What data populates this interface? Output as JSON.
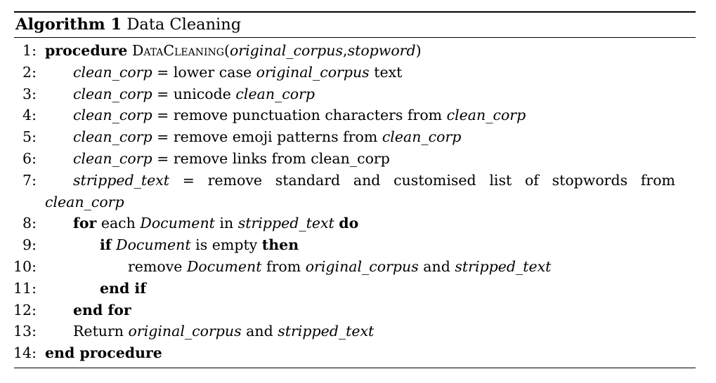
{
  "algorithm": {
    "title_label": "Algorithm 1",
    "title_name": "Data Cleaning",
    "lines": {
      "l1": {
        "num": "1:",
        "kw_procedure": "procedure",
        "proc_name": "DataCleaning",
        "open": "(",
        "arg1": "original_corpus",
        "comma": ",",
        "arg2": "stopword",
        "close": ")"
      },
      "l2": {
        "num": "2:",
        "var": "clean_corp",
        "eq": "=",
        "text1": "lower case",
        "var2": "original_corpus",
        "text2": "text"
      },
      "l3": {
        "num": "3:",
        "var": "clean_corp",
        "eq": "=",
        "text1": "unicode",
        "var2": "clean_corp"
      },
      "l4": {
        "num": "4:",
        "var": "clean_corp",
        "eq": "=",
        "text1": "remove punctuation characters from",
        "var2": "clean_corp"
      },
      "l5": {
        "num": "5:",
        "var": "clean_corp",
        "eq": "=",
        "text1": "remove emoji patterns from",
        "var2": "clean_corp"
      },
      "l6": {
        "num": "6:",
        "var": "clean_corp",
        "eq": "=",
        "text1": "remove links from clean_corp"
      },
      "l7": {
        "num": "7:",
        "words": [
          "stripped_text",
          "=",
          "remove",
          "standard",
          "and",
          "customised",
          "list",
          "of",
          "stopwords",
          "from"
        ],
        "cont": "clean_corp"
      },
      "l8": {
        "num": "8:",
        "kw_for": "for",
        "text1": "each",
        "var1": "Document",
        "text2": "in",
        "var2": "stripped_text",
        "kw_do": "do"
      },
      "l9": {
        "num": "9:",
        "kw_if": "if",
        "var1": "Document",
        "text1": "is empty",
        "kw_then": "then"
      },
      "l10": {
        "num": "10:",
        "text1": "remove",
        "var1": "Document",
        "text2": "from",
        "var2": "original_corpus",
        "text3": "and",
        "var3": "stripped_text"
      },
      "l11": {
        "num": "11:",
        "kw": "end if"
      },
      "l12": {
        "num": "12:",
        "kw": "end for"
      },
      "l13": {
        "num": "13:",
        "text1": "Return",
        "var1": "original_corpus",
        "text2": "and",
        "var2": "stripped_text"
      },
      "l14": {
        "num": "14:",
        "kw": "end procedure"
      }
    }
  }
}
